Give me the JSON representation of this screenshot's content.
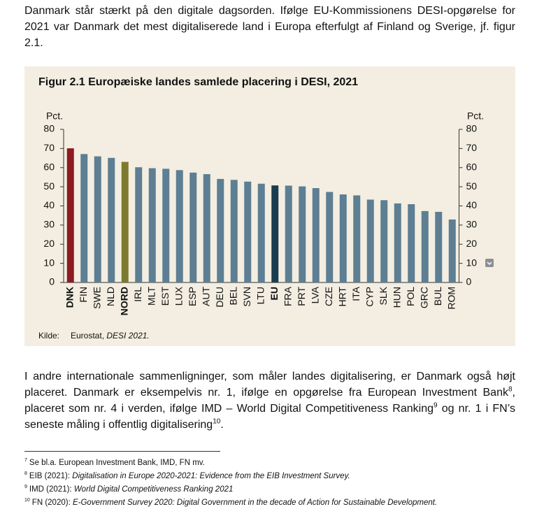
{
  "paragraphs": [
    [
      "Danmark står stærkt på den digitale dagsorden. Ifølge EU-Kommissionens DESI-opgørelse for 2021 var Danmark det mest digitaliserede land i Europa efterfulgt af Finland og Sverige, jf. figur 2.1."
    ],
    [
      "I andre internationale sammenligninger, som måler landes digitalisering, er Danmark også højt placeret. Danmark er eksempelvis nr. 1, ifølge en opgørelse fra European Investment Bank",
      "8",
      ", placeret som nr. 4 i verden, ifølge IMD – World Digital Competitiveness Ranking",
      "9",
      " og nr. 1 i FN’s seneste måling i offentlig digitalisering",
      "10",
      "."
    ]
  ],
  "chart_data": {
    "type": "bar",
    "title": "Figur 2.1 Europæiske landes samlede placering i DESI, 2021",
    "ylabel": "Pct.",
    "y2label": "Pct.",
    "categories": [
      "DNK",
      "FIN",
      "SWE",
      "NLD",
      "NORD",
      "IRL",
      "MLT",
      "EST",
      "LUX",
      "ESP",
      "AUT",
      "DEU",
      "BEL",
      "SVN",
      "LTU",
      "EU",
      "FRA",
      "PRT",
      "LVA",
      "CZE",
      "HRT",
      "ITA",
      "CYP",
      "SLK",
      "HUN",
      "POL",
      "GRC",
      "BUL",
      "ROM"
    ],
    "values": [
      70.1,
      67.1,
      65.9,
      65.1,
      63,
      60.2,
      59.7,
      59.4,
      58.7,
      57.4,
      56.6,
      54.1,
      53.6,
      52.7,
      51.6,
      50.7,
      50.6,
      50.2,
      49.3,
      47.3,
      46.0,
      45.5,
      43.3,
      43.0,
      41.3,
      40.9,
      37.3,
      36.9,
      32.9
    ],
    "color": "#5d7e93",
    "colors": [
      "#8c1b22",
      "#5d7e93",
      "#5d7e93",
      "#5d7e93",
      "#7c7a2e",
      "#5d7e93",
      "#5d7e93",
      "#5d7e93",
      "#5d7e93",
      "#5d7e93",
      "#5d7e93",
      "#5d7e93",
      "#5d7e93",
      "#5d7e93",
      "#5d7e93",
      "#1b3c4e",
      "#5d7e93",
      "#5d7e93",
      "#5d7e93",
      "#5d7e93",
      "#5d7e93",
      "#5d7e93",
      "#5d7e93",
      "#5d7e93",
      "#5d7e93",
      "#5d7e93",
      "#5d7e93",
      "#5d7e93",
      "#5d7e93"
    ],
    "ylim": [
      0,
      80
    ],
    "yticks": [
      0,
      10,
      20,
      30,
      40,
      50,
      60,
      70,
      80
    ],
    "y2lim": [
      0,
      80
    ],
    "y2ticks": [
      0,
      10,
      20,
      30,
      40,
      50,
      60,
      70,
      80
    ],
    "source_label": "Kilde:",
    "source": "Eurostat,",
    "source_title": "DESI 2021."
  },
  "footnotes": [
    {
      "number": "7",
      "text": "Se bl.a. European Investment Bank, IMD, FN mv.",
      "title": ""
    },
    {
      "number": "8",
      "text": "EIB (2021):",
      "title": "Digitalisation in Europe 2020-2021: Evidence from the EIB Investment Survey."
    },
    {
      "number": "9",
      "text": "IMD (2021):",
      "title": "World Digital Competitiveness Ranking 2021"
    },
    {
      "number": "10",
      "text": "FN (2020):",
      "title": "E-Government Survey 2020: Digital Government in the decade of Action for Sustainable Development."
    }
  ]
}
